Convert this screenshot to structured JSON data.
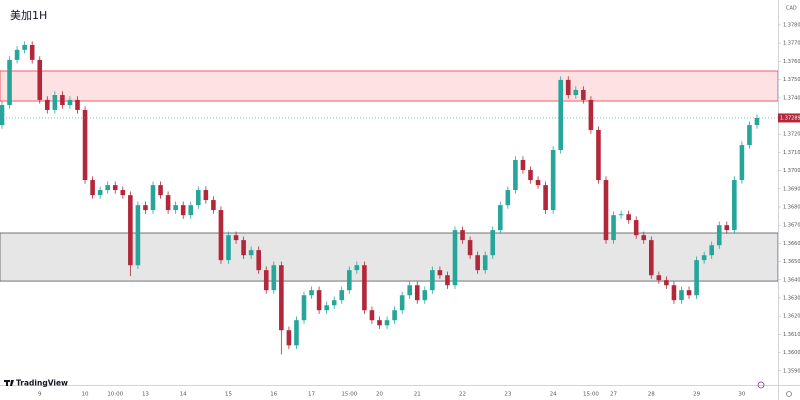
{
  "chart_data": {
    "type": "candlestick",
    "title": "美加1H",
    "currency": "CAD",
    "watermark": "TradingView",
    "categories": [
      null,
      null,
      null,
      null,
      null,
      "9",
      null,
      null,
      null,
      null,
      null,
      "10",
      null,
      null,
      null,
      "10:00",
      null,
      null,
      null,
      "13",
      null,
      null,
      null,
      null,
      "14",
      null,
      null,
      null,
      null,
      null,
      "15",
      null,
      null,
      null,
      null,
      null,
      "16",
      null,
      null,
      null,
      null,
      "17",
      null,
      null,
      null,
      null,
      "15:00",
      null,
      null,
      null,
      "20",
      null,
      null,
      null,
      null,
      "21",
      null,
      null,
      null,
      null,
      null,
      "22",
      null,
      null,
      null,
      null,
      null,
      "23",
      null,
      null,
      null,
      null,
      null,
      "24",
      null,
      null,
      null,
      null,
      "15:00",
      null,
      null,
      "27",
      null,
      null,
      null,
      null,
      "28",
      null,
      null,
      null,
      null,
      null,
      "29",
      null,
      null,
      null,
      null,
      null,
      "30",
      null,
      null
    ],
    "open": [
      1.3725,
      1.3736,
      1.37608,
      1.37663,
      1.3769,
      1.37608,
      1.37388,
      1.37333,
      1.37415,
      1.3736,
      1.37388,
      1.37333,
      1.36948,
      1.36865,
      1.36893,
      1.3692,
      1.36893,
      1.36865,
      1.3648,
      1.3681,
      1.36783,
      1.3692,
      1.36865,
      1.36783,
      1.3681,
      1.36755,
      1.3681,
      1.36893,
      1.36838,
      1.36783,
      1.36508,
      1.36645,
      1.36618,
      1.36535,
      1.36563,
      1.36453,
      1.36343,
      1.3648,
      1.36123,
      1.3604,
      1.36178,
      1.36315,
      1.36343,
      1.36233,
      1.3626,
      1.36288,
      1.36343,
      1.36453,
      1.3648,
      1.36233,
      1.36178,
      1.3615,
      1.36178,
      1.36233,
      1.36315,
      1.3637,
      1.36288,
      1.36343,
      1.36453,
      1.36425,
      1.3637,
      1.36673,
      1.36618,
      1.36535,
      1.36453,
      1.36535,
      1.36673,
      1.3681,
      1.36893,
      1.37058,
      1.37003,
      1.36948,
      1.3692,
      1.36783,
      1.37113,
      1.37498,
      1.37415,
      1.37443,
      1.37388,
      1.37223,
      1.36948,
      1.36618,
      1.36755,
      1.3676,
      1.36728,
      1.36645,
      1.36618,
      1.36425,
      1.36398,
      1.3637,
      1.36288,
      1.36343,
      1.36315,
      1.36508,
      1.36535,
      1.3659,
      1.367,
      1.36673,
      1.36948,
      1.3714,
      1.3725
    ],
    "high": [
      1.3738,
      1.37628,
      1.37683,
      1.3771,
      1.3771,
      1.37628,
      1.37408,
      1.37435,
      1.37435,
      1.37408,
      1.37408,
      1.37353,
      1.36968,
      1.36913,
      1.3694,
      1.3694,
      1.36913,
      1.36885,
      1.3683,
      1.3683,
      1.3694,
      1.3694,
      1.36885,
      1.3683,
      1.3683,
      1.3683,
      1.36913,
      1.36913,
      1.36858,
      1.36803,
      1.36665,
      1.36665,
      1.36638,
      1.36583,
      1.36583,
      1.36473,
      1.365,
      1.365,
      1.36143,
      1.36198,
      1.36335,
      1.36363,
      1.36363,
      1.3628,
      1.36308,
      1.36363,
      1.36473,
      1.365,
      1.365,
      1.36253,
      1.36198,
      1.36198,
      1.36253,
      1.36335,
      1.3639,
      1.3639,
      1.36363,
      1.36473,
      1.36473,
      1.36445,
      1.36693,
      1.36693,
      1.36638,
      1.36555,
      1.36555,
      1.36693,
      1.3683,
      1.36913,
      1.37078,
      1.37078,
      1.37023,
      1.36968,
      1.3694,
      1.37133,
      1.37518,
      1.37518,
      1.37463,
      1.37463,
      1.37408,
      1.37243,
      1.36968,
      1.36775,
      1.3678,
      1.3678,
      1.36748,
      1.36665,
      1.36638,
      1.36445,
      1.36418,
      1.3639,
      1.36363,
      1.36363,
      1.36528,
      1.36555,
      1.3661,
      1.3672,
      1.3672,
      1.36968,
      1.3716,
      1.3727,
      1.37309
    ],
    "low": [
      1.3723,
      1.3734,
      1.37588,
      1.37643,
      1.37588,
      1.37368,
      1.37313,
      1.37313,
      1.3734,
      1.3734,
      1.37313,
      1.36928,
      1.36845,
      1.36845,
      1.36873,
      1.36873,
      1.36845,
      1.3642,
      1.3646,
      1.36763,
      1.36763,
      1.36845,
      1.36763,
      1.36763,
      1.36735,
      1.36735,
      1.3679,
      1.36818,
      1.36763,
      1.36488,
      1.36488,
      1.36598,
      1.36515,
      1.36515,
      1.36433,
      1.36323,
      1.36323,
      1.3599,
      1.3602,
      1.3602,
      1.36158,
      1.36295,
      1.36213,
      1.36213,
      1.3624,
      1.36268,
      1.36323,
      1.36433,
      1.36213,
      1.36158,
      1.3613,
      1.3613,
      1.36158,
      1.36213,
      1.36295,
      1.36268,
      1.36268,
      1.36323,
      1.36405,
      1.3635,
      1.3635,
      1.36598,
      1.36515,
      1.36433,
      1.36433,
      1.36515,
      1.36653,
      1.3679,
      1.36873,
      1.36983,
      1.36928,
      1.369,
      1.36763,
      1.36763,
      1.37093,
      1.37395,
      1.37395,
      1.37368,
      1.37203,
      1.36928,
      1.36598,
      1.36598,
      1.36735,
      1.36708,
      1.36625,
      1.36598,
      1.36405,
      1.36378,
      1.3635,
      1.36268,
      1.36268,
      1.36295,
      1.36295,
      1.36488,
      1.36515,
      1.3657,
      1.36653,
      1.36653,
      1.36928,
      1.3712,
      1.3723
    ],
    "close": [
      1.3736,
      1.37608,
      1.37663,
      1.3769,
      1.37608,
      1.37388,
      1.37333,
      1.37415,
      1.3736,
      1.37388,
      1.37333,
      1.36948,
      1.36865,
      1.36893,
      1.3692,
      1.36893,
      1.36865,
      1.3648,
      1.3681,
      1.36783,
      1.3692,
      1.36865,
      1.36783,
      1.3681,
      1.36755,
      1.3681,
      1.36893,
      1.36838,
      1.36783,
      1.36508,
      1.36645,
      1.36618,
      1.36535,
      1.36563,
      1.36453,
      1.36343,
      1.3648,
      1.36123,
      1.3604,
      1.36178,
      1.36315,
      1.36343,
      1.36233,
      1.3626,
      1.36288,
      1.36343,
      1.36453,
      1.3648,
      1.36233,
      1.36178,
      1.3615,
      1.36178,
      1.36233,
      1.36315,
      1.3637,
      1.36288,
      1.36343,
      1.36453,
      1.36425,
      1.3637,
      1.36673,
      1.36618,
      1.36535,
      1.36453,
      1.36535,
      1.36673,
      1.3681,
      1.36893,
      1.37058,
      1.37003,
      1.36948,
      1.3692,
      1.36783,
      1.37113,
      1.37498,
      1.37415,
      1.37443,
      1.37388,
      1.37223,
      1.36948,
      1.36618,
      1.36755,
      1.3676,
      1.36728,
      1.36645,
      1.36618,
      1.36425,
      1.36398,
      1.3637,
      1.36288,
      1.36343,
      1.36315,
      1.36508,
      1.36535,
      1.3659,
      1.367,
      1.36673,
      1.36948,
      1.3714,
      1.3725,
      1.37289
    ],
    "up_color": "#26a69a",
    "down_color": "#b2283a",
    "ylim": [
      1.35822,
      1.37937
    ],
    "yticks": [
      {
        "value": 1.378,
        "label": "1.37800"
      },
      {
        "value": 1.377,
        "label": "1.37700"
      },
      {
        "value": 1.376,
        "label": "1.37600"
      },
      {
        "value": 1.375,
        "label": "1.37500"
      },
      {
        "value": 1.374,
        "label": "1.37400"
      },
      {
        "value": 1.373,
        "label": "1.37300"
      },
      {
        "value": 1.372,
        "label": "1.37200"
      },
      {
        "value": 1.371,
        "label": "1.37100"
      },
      {
        "value": 1.37,
        "label": "1.37000"
      },
      {
        "value": 1.369,
        "label": "1.36900"
      },
      {
        "value": 1.368,
        "label": "1.36800"
      },
      {
        "value": 1.367,
        "label": "1.36700"
      },
      {
        "value": 1.366,
        "label": "1.36600"
      },
      {
        "value": 1.365,
        "label": "1.36500"
      },
      {
        "value": 1.364,
        "label": "1.36400"
      },
      {
        "value": 1.363,
        "label": "1.36300"
      },
      {
        "value": 1.362,
        "label": "1.36200"
      },
      {
        "value": 1.361,
        "label": "1.36100"
      },
      {
        "value": 1.36,
        "label": "1.36000"
      },
      {
        "value": 1.359,
        "label": "1.35900"
      }
    ],
    "zones": [
      {
        "from": 1.37382,
        "to": 1.37547,
        "color": "#f23645"
      },
      {
        "from": 1.36393,
        "to": 1.36657,
        "color": "#555555"
      }
    ]
  }
}
